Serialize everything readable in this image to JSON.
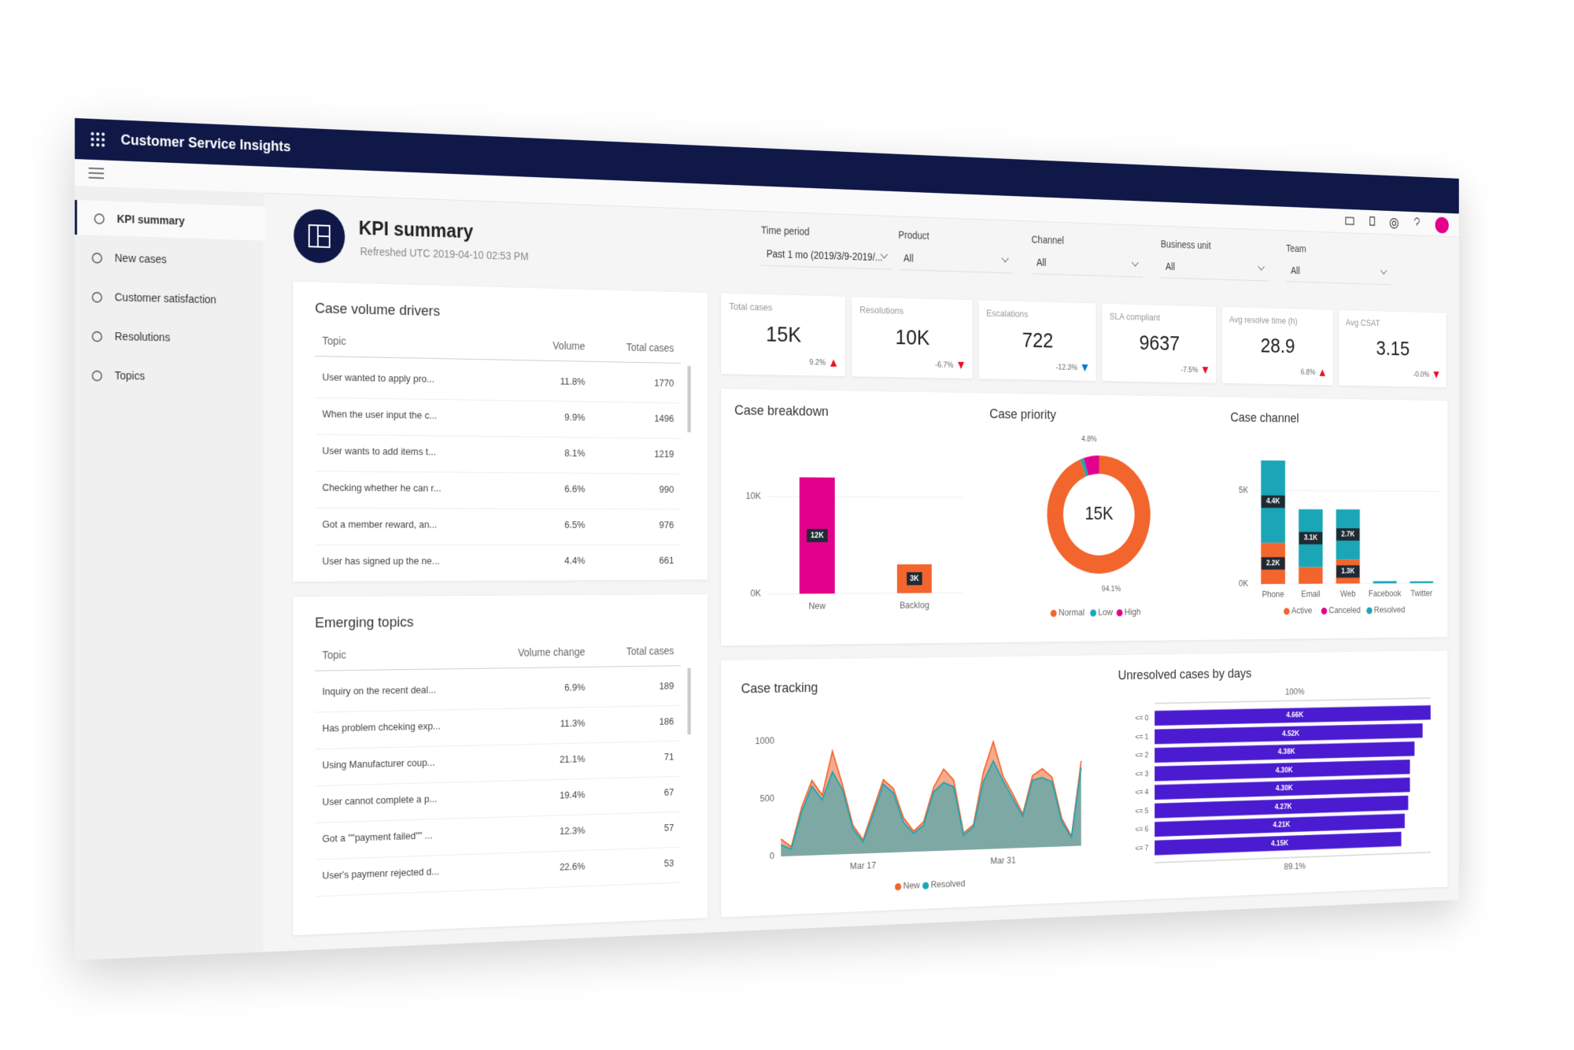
{
  "app": {
    "title": "Customer Service Insights"
  },
  "nav": [
    "KPI summary",
    "New cases",
    "Customer satisfaction",
    "Resolutions",
    "Topics"
  ],
  "header": {
    "title": "KPI summary",
    "refreshed": "Refreshed UTC 2019-04-10 02:53 PM"
  },
  "filters": [
    {
      "label": "Time period",
      "value": "Past 1 mo (2019/3/9-2019/..."
    },
    {
      "label": "Product",
      "value": "All"
    },
    {
      "label": "Channel",
      "value": "All"
    },
    {
      "label": "Business unit",
      "value": "All"
    },
    {
      "label": "Team",
      "value": "All"
    }
  ],
  "kpis": [
    {
      "label": "Total cases",
      "value": "15K",
      "change": "9.2%",
      "trend": "up",
      "trend_color": "#e81123"
    },
    {
      "label": "Resolutions",
      "value": "10K",
      "change": "-6.7%",
      "trend": "down",
      "trend_color": "#e81123"
    },
    {
      "label": "Escalations",
      "value": 722,
      "change": "-12.3%",
      "trend": "down",
      "trend_color": "#0078d4"
    },
    {
      "label": "SLA compliant",
      "value": 9637,
      "change": "-7.5%",
      "trend": "down",
      "trend_color": "#e81123"
    },
    {
      "label": "Avg resolve time (h)",
      "value": 28.9,
      "change": "6.8%",
      "trend": "up",
      "trend_color": "#e81123"
    },
    {
      "label": "Avg CSAT",
      "value": 3.15,
      "change": "-0.0%",
      "trend": "down",
      "trend_color": "#e81123"
    }
  ],
  "case_volume_drivers": {
    "title": "Case volume drivers",
    "columns": [
      "Topic",
      "Volume",
      "Total cases"
    ],
    "rows": [
      [
        "User wanted to apply pro...",
        "11.8%",
        1770
      ],
      [
        "When the user input the c...",
        "9.9%",
        1496
      ],
      [
        "User wants to add items t...",
        "8.1%",
        1219
      ],
      [
        "Checking whether he can r...",
        "6.6%",
        990
      ],
      [
        "Got a member reward, an...",
        "6.5%",
        976
      ],
      [
        "User has signed up the ne...",
        "4.4%",
        661
      ]
    ]
  },
  "emerging_topics": {
    "title": "Emerging topics",
    "columns": [
      "Topic",
      "Volume change",
      "Total cases"
    ],
    "rows": [
      [
        "Inquiry on the recent deal...",
        "6.9%",
        189
      ],
      [
        "Has problem chceking exp...",
        "11.3%",
        186
      ],
      [
        "Using Manufacturer coup...",
        "21.1%",
        71
      ],
      [
        "User cannot complete a p...",
        "19.4%",
        67
      ],
      [
        "Got a \"\"payment failed\"\" ...",
        "12.3%",
        57
      ],
      [
        "User's paymenr rejected d...",
        "22.6%",
        53
      ]
    ]
  },
  "chart_data": [
    {
      "type": "bar",
      "title": "Case breakdown",
      "categories": [
        "New",
        "Backlog"
      ],
      "values": [
        12000,
        3000
      ],
      "value_labels": [
        "12K",
        "3K"
      ],
      "colors": [
        "#e3008c",
        "#f2652d"
      ],
      "ylim": [
        0,
        15000
      ],
      "yticks": [
        {
          "value": 0,
          "label": "0K"
        },
        {
          "value": 10000,
          "label": "10K"
        }
      ],
      "grid": true
    },
    {
      "type": "donut",
      "title": "Case priority",
      "center_label": "15K",
      "categories": [
        "Normal",
        "Low",
        "High"
      ],
      "values": [
        94.1,
        1.1,
        4.8
      ],
      "value_labels": [
        "94.1%",
        null,
        "4.8%"
      ],
      "colors": [
        "#f2652d",
        "#1aa6b7",
        "#e3008c"
      ]
    },
    {
      "type": "stacked_bar",
      "title": "Case channel",
      "categories": [
        "Phone",
        "Email",
        "Web",
        "Facebook",
        "Twitter"
      ],
      "series": [
        {
          "name": "Active",
          "color": "#f2652d",
          "values": [
            2200,
            900,
            1300,
            0,
            0
          ],
          "value_labels": [
            "2.2K",
            null,
            "1.3K",
            null,
            null
          ]
        },
        {
          "name": "Canceled",
          "color": "#e3008c",
          "values": [
            0,
            0,
            0,
            0,
            0
          ],
          "value_labels": [
            null,
            null,
            null,
            null,
            null
          ]
        },
        {
          "name": "Resolved",
          "color": "#1aa6b7",
          "values": [
            4400,
            3100,
            2700,
            120,
            100
          ],
          "value_labels": [
            "4.4K",
            "3.1K",
            "2.7K",
            null,
            null
          ]
        }
      ],
      "ylim": [
        0,
        7000
      ],
      "yticks": [
        {
          "value": 0,
          "label": "0K"
        },
        {
          "value": 5000,
          "label": "5K"
        }
      ],
      "grid": true
    },
    {
      "type": "area",
      "title": "Case tracking",
      "categories": [
        null,
        null,
        null,
        null,
        null,
        null,
        null,
        null,
        "Mar 17",
        null,
        null,
        null,
        null,
        null,
        null,
        null,
        null,
        null,
        null,
        null,
        null,
        null,
        "Mar 31",
        null,
        null,
        null,
        null,
        null,
        null,
        null,
        null
      ],
      "series": [
        {
          "name": "New",
          "color": "#f2652d",
          "values": [
            150,
            80,
            420,
            650,
            520,
            900,
            600,
            250,
            120,
            380,
            640,
            560,
            300,
            180,
            260,
            560,
            720,
            620,
            150,
            220,
            680,
            950,
            640,
            480,
            300,
            640,
            700,
            620,
            250,
            90,
            760
          ]
        },
        {
          "name": "Resolved",
          "color": "#1aa6b7",
          "values": [
            100,
            60,
            380,
            600,
            480,
            720,
            560,
            220,
            100,
            340,
            600,
            520,
            260,
            160,
            230,
            520,
            600,
            560,
            130,
            200,
            600,
            780,
            600,
            440,
            280,
            600,
            620,
            580,
            220,
            80,
            700
          ]
        }
      ],
      "ylim": [
        0,
        1200
      ],
      "yticks": [
        0,
        500,
        1000
      ]
    },
    {
      "type": "hbar",
      "title": "Unresolved cases by days",
      "top_label": "100%",
      "bottom_label": "89.1%",
      "categories": [
        "<= 0",
        "<= 1",
        "<= 2",
        "<= 3",
        "<= 4",
        "<= 5",
        "<= 6",
        "<= 7"
      ],
      "values": [
        4660,
        4520,
        4380,
        4300,
        4300,
        4270,
        4210,
        4150
      ],
      "value_labels": [
        "4.66K",
        "4.52K",
        "4.38K",
        "4.30K",
        "4.30K",
        "4.27K",
        "4.21K",
        "4.15K"
      ],
      "color": "#4a1bd1",
      "xlim": [
        0,
        4660
      ]
    }
  ]
}
